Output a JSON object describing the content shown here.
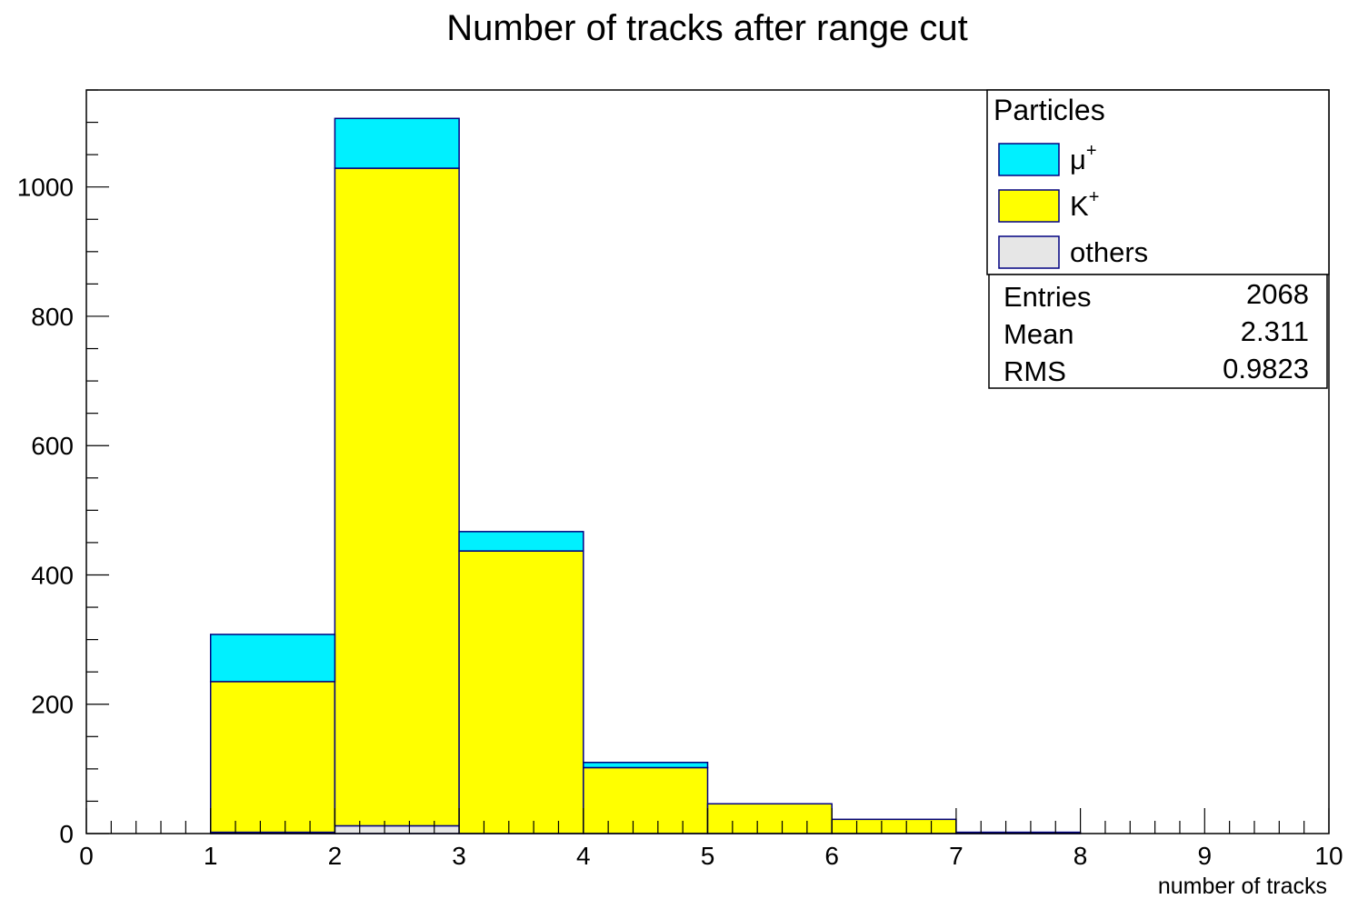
{
  "chart_data": {
    "type": "bar",
    "stacked": true,
    "title": "Number of tracks after range cut",
    "xlabel": "number of tracks",
    "ylabel": "",
    "xlim": [
      0,
      10
    ],
    "ylim": [
      0,
      1150
    ],
    "x_ticks": [
      0,
      1,
      2,
      3,
      4,
      5,
      6,
      7,
      8,
      9,
      10
    ],
    "y_ticks": [
      0,
      200,
      400,
      600,
      800,
      1000
    ],
    "bin_edges": [
      0,
      1,
      2,
      3,
      4,
      5,
      6,
      7,
      8,
      9,
      10
    ],
    "series": [
      {
        "name": "others",
        "color": "#e6e6e6",
        "values": [
          0,
          2,
          12,
          0,
          0,
          0,
          0,
          0,
          0,
          0
        ]
      },
      {
        "name": "K",
        "sup": "+",
        "color": "#ffff00",
        "values": [
          0,
          233,
          1017,
          437,
          102,
          46,
          22,
          0,
          0,
          0
        ]
      },
      {
        "name": "μ",
        "sup": "+",
        "color": "#00f0ff",
        "values": [
          0,
          73,
          77,
          30,
          8,
          0,
          0,
          2,
          0,
          0
        ]
      }
    ],
    "legend": {
      "title": "Particles",
      "placement": "top-right",
      "entries_order": [
        "μ",
        "K",
        "others"
      ]
    },
    "stats": [
      {
        "label": "Entries",
        "value": "2068"
      },
      {
        "label": "Mean",
        "value": "2.311"
      },
      {
        "label": "RMS",
        "value": "0.9823"
      }
    ],
    "outline_color": "#000080",
    "grid": false
  }
}
